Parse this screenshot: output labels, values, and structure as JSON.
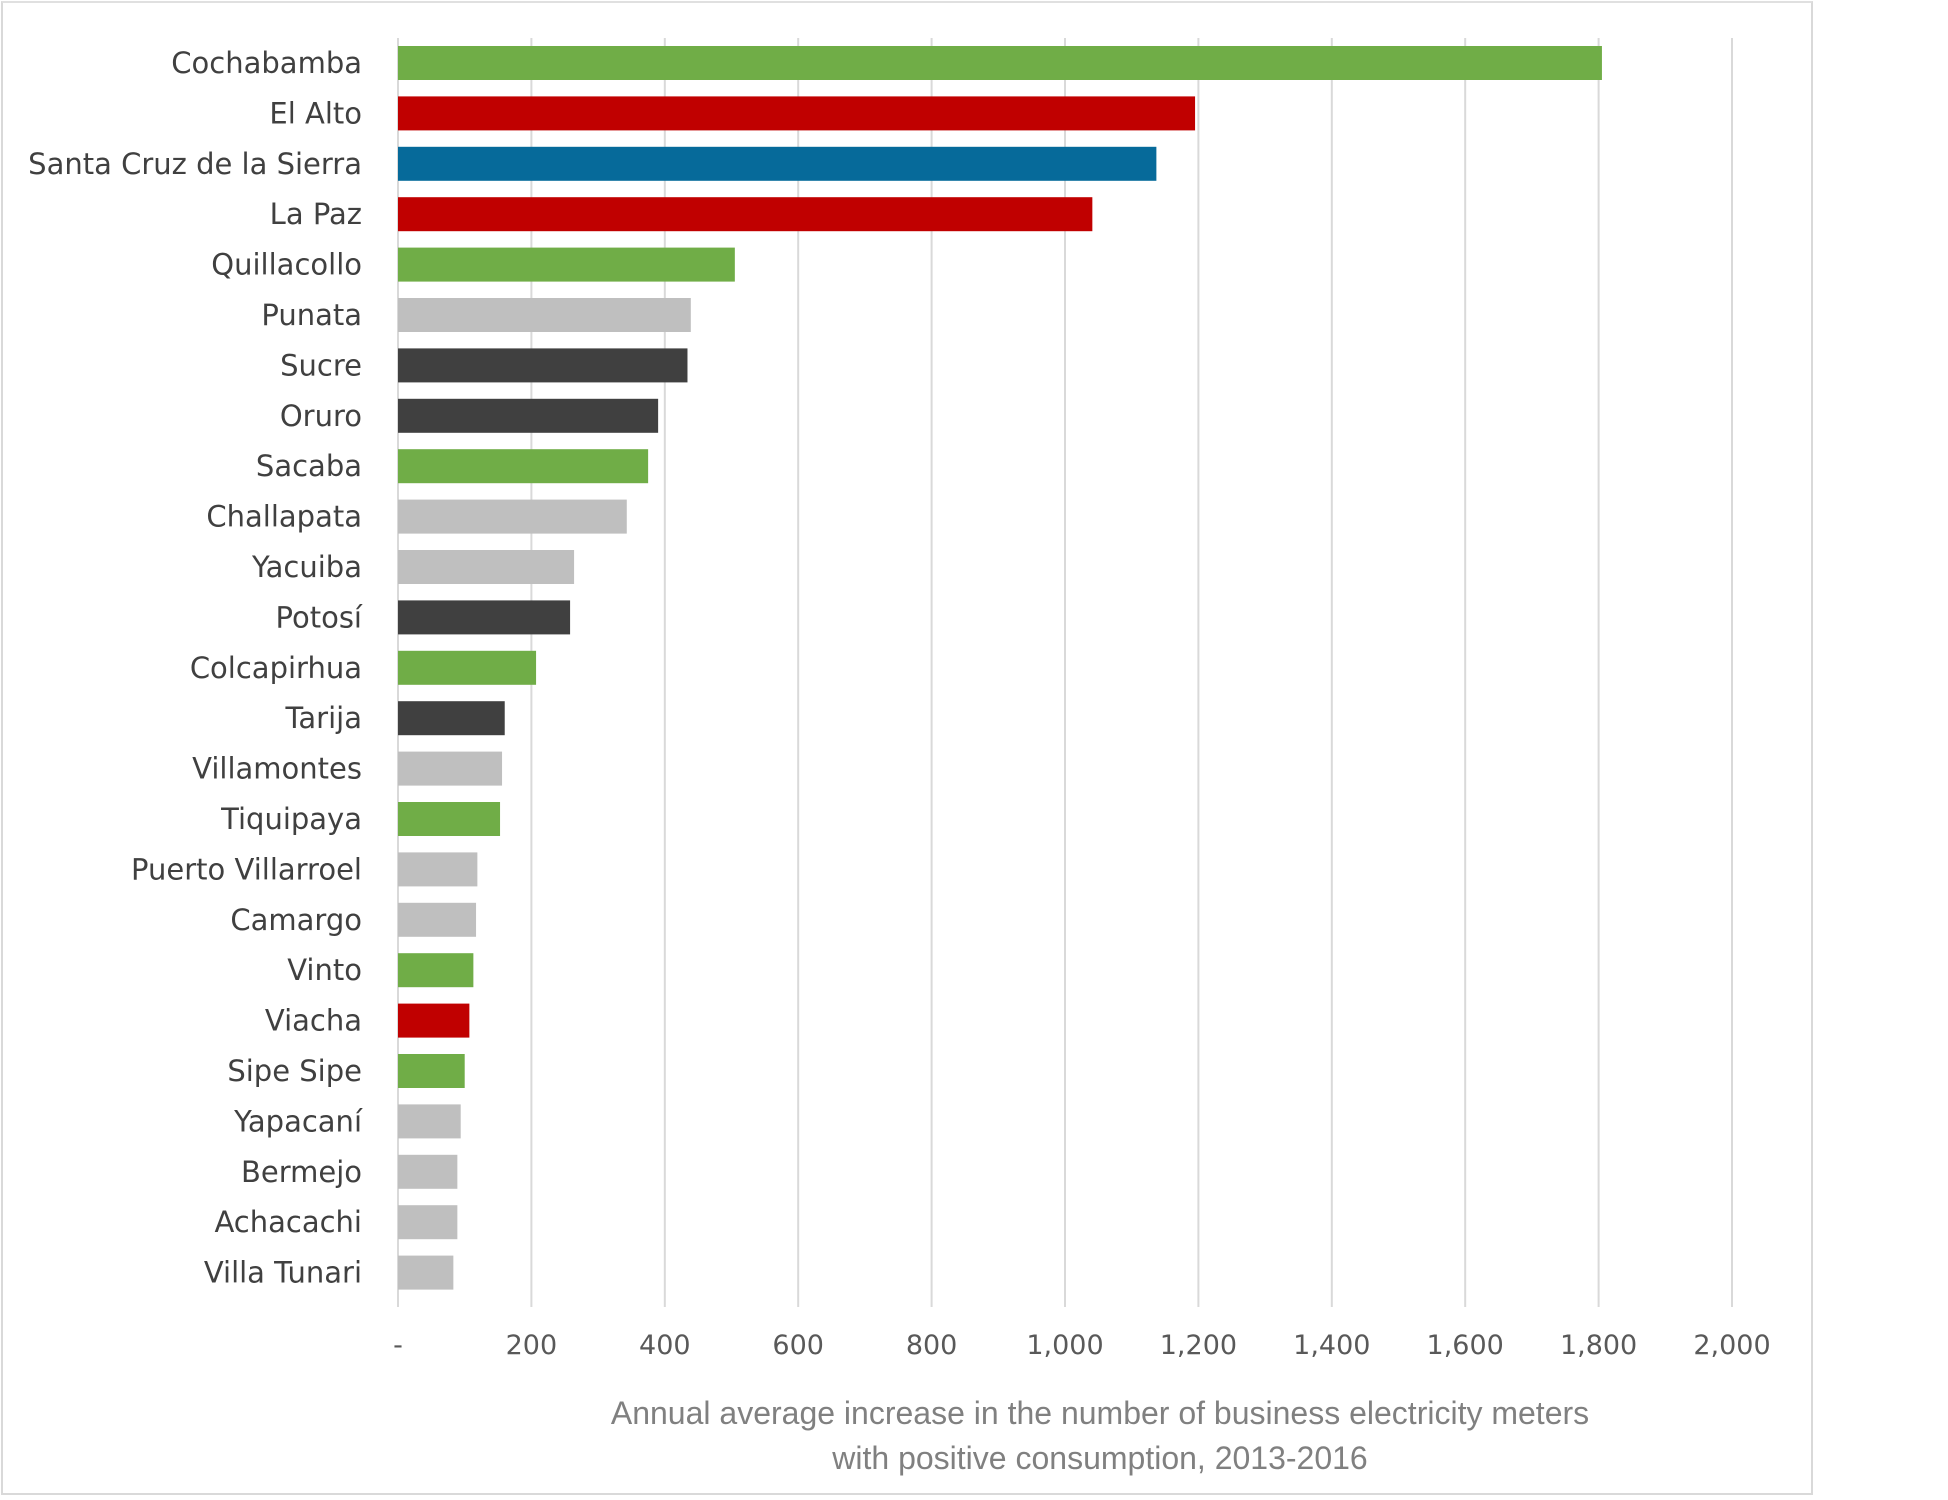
{
  "chart_data": {
    "type": "bar",
    "orientation": "horizontal",
    "title": "",
    "xlabel": [
      "Annual average increase in the number of business electricity meters",
      "with positive consumption, 2013-2016"
    ],
    "ylabel": "",
    "xlim": [
      0,
      2000
    ],
    "xticks": [
      0,
      200,
      400,
      600,
      800,
      1000,
      1200,
      1400,
      1600,
      1800,
      2000
    ],
    "xtick_labels": [
      "-",
      "200",
      "400",
      "600",
      "800",
      "1,000",
      "1,200",
      "1,400",
      "1,600",
      "1,800",
      "2,000"
    ],
    "grid": "vertical",
    "categories": [
      "Cochabamba",
      "El Alto",
      "Santa Cruz de la Sierra",
      "La Paz",
      "Quillacollo",
      "Punata",
      "Sucre",
      "Oruro",
      "Sacaba",
      "Challapata",
      "Yacuiba",
      "Potosí",
      "Colcapirhua",
      "Tarija",
      "Villamontes",
      "Tiquipaya",
      "Puerto Villarroel",
      "Camargo",
      "Vinto",
      "Viacha",
      "Sipe Sipe",
      "Yapacaní",
      "Bermejo",
      "Achacachi",
      "Villa Tunari"
    ],
    "values": [
      1805,
      1195,
      1137,
      1041,
      505,
      439,
      434,
      390,
      375,
      343,
      264,
      258,
      207,
      160,
      156,
      153,
      119,
      117,
      113,
      107,
      100,
      94,
      89,
      89,
      83
    ],
    "colors": [
      "#70AD47",
      "#C00000",
      "#066A9A",
      "#C00000",
      "#70AD47",
      "#BFBFBF",
      "#404040",
      "#404040",
      "#70AD47",
      "#BFBFBF",
      "#BFBFBF",
      "#404040",
      "#70AD47",
      "#404040",
      "#BFBFBF",
      "#70AD47",
      "#BFBFBF",
      "#BFBFBF",
      "#70AD47",
      "#C00000",
      "#70AD47",
      "#BFBFBF",
      "#BFBFBF",
      "#BFBFBF",
      "#BFBFBF"
    ]
  }
}
